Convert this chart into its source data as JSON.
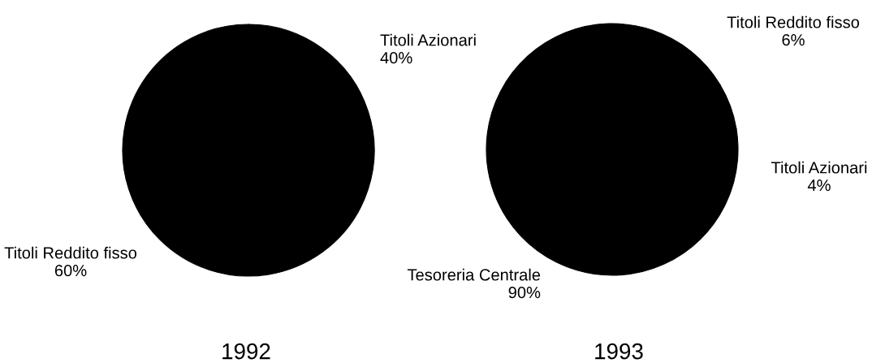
{
  "chart_data": [
    {
      "type": "pie",
      "title": "1992",
      "categories": [
        "Titoli Azionari",
        "Titoli Reddito fisso"
      ],
      "values": [
        40,
        60
      ],
      "colors": [
        "#000000",
        "#000000"
      ],
      "value_labels": [
        "40%",
        "60%"
      ]
    },
    {
      "type": "pie",
      "title": "1993",
      "categories": [
        "Titoli Reddito fisso",
        "Titoli Azionari",
        "Tesoreria Centrale"
      ],
      "values": [
        6,
        4,
        90
      ],
      "colors": [
        "#000000",
        "#000000",
        "#000000"
      ],
      "value_labels": [
        "6%",
        "4%",
        "90%"
      ]
    }
  ]
}
